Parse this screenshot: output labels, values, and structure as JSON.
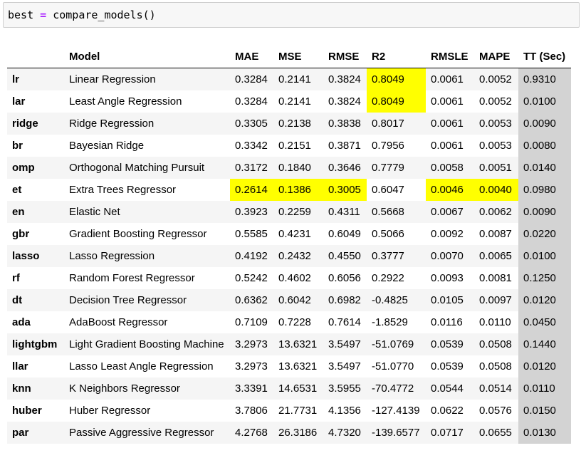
{
  "code_cell": {
    "var_name": "best",
    "operator": "=",
    "call": "compare_models()"
  },
  "highlight_color": "#ffff00",
  "tt_column_color": "#d3d3d3",
  "table": {
    "columns": [
      "",
      "Model",
      "MAE",
      "MSE",
      "RMSE",
      "R2",
      "RMSLE",
      "MAPE",
      "TT (Sec)"
    ],
    "rows": [
      {
        "id": "lr",
        "model": "Linear Regression",
        "mae": "0.3284",
        "mse": "0.2141",
        "rmse": "0.3824",
        "r2": "0.8049",
        "rmsle": "0.0061",
        "mape": "0.0052",
        "tt": "0.9310",
        "highlight": [
          "r2"
        ]
      },
      {
        "id": "lar",
        "model": "Least Angle Regression",
        "mae": "0.3284",
        "mse": "0.2141",
        "rmse": "0.3824",
        "r2": "0.8049",
        "rmsle": "0.0061",
        "mape": "0.0052",
        "tt": "0.0100",
        "highlight": [
          "r2"
        ]
      },
      {
        "id": "ridge",
        "model": "Ridge Regression",
        "mae": "0.3305",
        "mse": "0.2138",
        "rmse": "0.3838",
        "r2": "0.8017",
        "rmsle": "0.0061",
        "mape": "0.0053",
        "tt": "0.0090",
        "highlight": []
      },
      {
        "id": "br",
        "model": "Bayesian Ridge",
        "mae": "0.3342",
        "mse": "0.2151",
        "rmse": "0.3871",
        "r2": "0.7956",
        "rmsle": "0.0061",
        "mape": "0.0053",
        "tt": "0.0080",
        "highlight": []
      },
      {
        "id": "omp",
        "model": "Orthogonal Matching Pursuit",
        "mae": "0.3172",
        "mse": "0.1840",
        "rmse": "0.3646",
        "r2": "0.7779",
        "rmsle": "0.0058",
        "mape": "0.0051",
        "tt": "0.0140",
        "highlight": []
      },
      {
        "id": "et",
        "model": "Extra Trees Regressor",
        "mae": "0.2614",
        "mse": "0.1386",
        "rmse": "0.3005",
        "r2": "0.6047",
        "rmsle": "0.0046",
        "mape": "0.0040",
        "tt": "0.0980",
        "highlight": [
          "mae",
          "mse",
          "rmse",
          "rmsle",
          "mape"
        ]
      },
      {
        "id": "en",
        "model": "Elastic Net",
        "mae": "0.3923",
        "mse": "0.2259",
        "rmse": "0.4311",
        "r2": "0.5668",
        "rmsle": "0.0067",
        "mape": "0.0062",
        "tt": "0.0090",
        "highlight": []
      },
      {
        "id": "gbr",
        "model": "Gradient Boosting Regressor",
        "mae": "0.5585",
        "mse": "0.4231",
        "rmse": "0.6049",
        "r2": "0.5066",
        "rmsle": "0.0092",
        "mape": "0.0087",
        "tt": "0.0220",
        "highlight": []
      },
      {
        "id": "lasso",
        "model": "Lasso Regression",
        "mae": "0.4192",
        "mse": "0.2432",
        "rmse": "0.4550",
        "r2": "0.3777",
        "rmsle": "0.0070",
        "mape": "0.0065",
        "tt": "0.0100",
        "highlight": []
      },
      {
        "id": "rf",
        "model": "Random Forest Regressor",
        "mae": "0.5242",
        "mse": "0.4602",
        "rmse": "0.6056",
        "r2": "0.2922",
        "rmsle": "0.0093",
        "mape": "0.0081",
        "tt": "0.1250",
        "highlight": []
      },
      {
        "id": "dt",
        "model": "Decision Tree Regressor",
        "mae": "0.6362",
        "mse": "0.6042",
        "rmse": "0.6982",
        "r2": "-0.4825",
        "rmsle": "0.0105",
        "mape": "0.0097",
        "tt": "0.0120",
        "highlight": []
      },
      {
        "id": "ada",
        "model": "AdaBoost Regressor",
        "mae": "0.7109",
        "mse": "0.7228",
        "rmse": "0.7614",
        "r2": "-1.8529",
        "rmsle": "0.0116",
        "mape": "0.0110",
        "tt": "0.0450",
        "highlight": []
      },
      {
        "id": "lightgbm",
        "model": "Light Gradient Boosting Machine",
        "mae": "3.2973",
        "mse": "13.6321",
        "rmse": "3.5497",
        "r2": "-51.0769",
        "rmsle": "0.0539",
        "mape": "0.0508",
        "tt": "0.1440",
        "highlight": []
      },
      {
        "id": "llar",
        "model": "Lasso Least Angle Regression",
        "mae": "3.2973",
        "mse": "13.6321",
        "rmse": "3.5497",
        "r2": "-51.0770",
        "rmsle": "0.0539",
        "mape": "0.0508",
        "tt": "0.0120",
        "highlight": []
      },
      {
        "id": "knn",
        "model": "K Neighbors Regressor",
        "mae": "3.3391",
        "mse": "14.6531",
        "rmse": "3.5955",
        "r2": "-70.4772",
        "rmsle": "0.0544",
        "mape": "0.0514",
        "tt": "0.0110",
        "highlight": []
      },
      {
        "id": "huber",
        "model": "Huber Regressor",
        "mae": "3.7806",
        "mse": "21.7731",
        "rmse": "4.1356",
        "r2": "-127.4139",
        "rmsle": "0.0622",
        "mape": "0.0576",
        "tt": "0.0150",
        "highlight": []
      },
      {
        "id": "par",
        "model": "Passive Aggressive Regressor",
        "mae": "4.2768",
        "mse": "26.3186",
        "rmse": "4.7320",
        "r2": "-139.6577",
        "rmsle": "0.0717",
        "mape": "0.0655",
        "tt": "0.0130",
        "highlight": []
      }
    ]
  }
}
